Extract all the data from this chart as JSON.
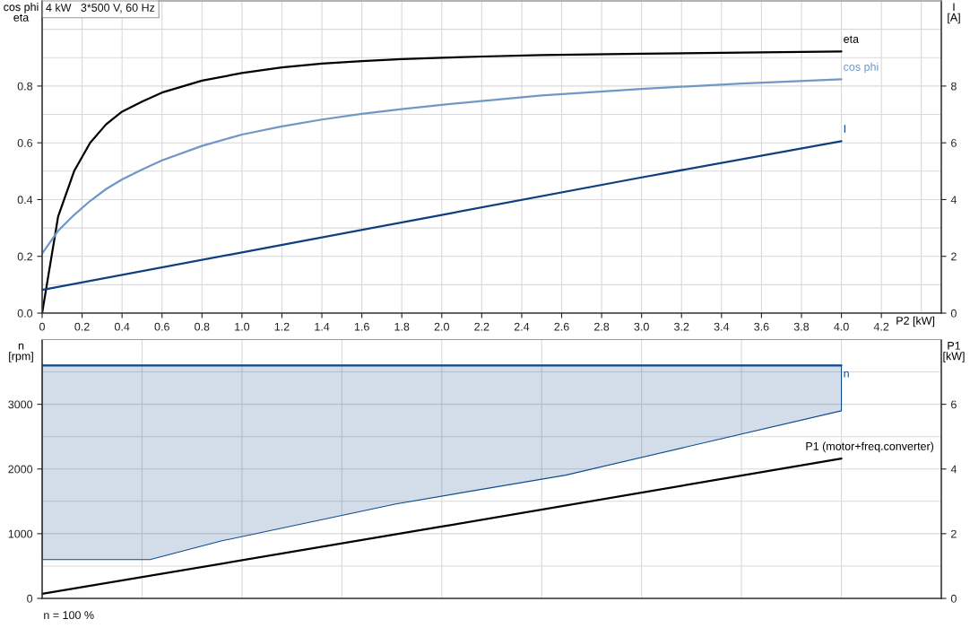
{
  "chart_data": [
    {
      "type": "line",
      "title": "4 kW   3*500 V, 60 Hz",
      "xlabel": "P2 [kW]",
      "ylabel": "cos phi\neta",
      "y2label": "I\n[A]",
      "x": [
        0,
        0.08,
        0.16,
        0.24,
        0.32,
        0.4,
        0.5,
        0.6,
        0.8,
        1.0,
        1.2,
        1.4,
        1.6,
        1.8,
        2.0,
        2.2,
        2.5,
        3.0,
        3.5,
        4.0
      ],
      "series": [
        {
          "name": "eta",
          "color": "#000000",
          "values": [
            0,
            0.34,
            0.5,
            0.6,
            0.665,
            0.71,
            0.745,
            0.777,
            0.819,
            0.846,
            0.866,
            0.879,
            0.888,
            0.895,
            0.9,
            0.904,
            0.909,
            0.914,
            0.918,
            0.922
          ]
        },
        {
          "name": "cos phi",
          "color": "#6f98c4",
          "values": [
            0.21,
            0.29,
            0.346,
            0.395,
            0.437,
            0.471,
            0.506,
            0.538,
            0.589,
            0.629,
            0.658,
            0.682,
            0.702,
            0.719,
            0.734,
            0.747,
            0.767,
            0.79,
            0.809,
            0.824
          ]
        },
        {
          "name": "I",
          "color": "#0f3f7d",
          "axis": "y2",
          "x": [
            0,
            1,
            2,
            3,
            4
          ],
          "values": [
            0.82,
            2.14,
            3.46,
            4.78,
            6.06
          ]
        }
      ],
      "xlim": [
        0,
        4.5
      ],
      "xticks": [
        {
          "value": 0,
          "label": "0"
        },
        0.2,
        0.4,
        0.6,
        0.8,
        {
          "value": 1,
          "label": "1.0"
        },
        1.2,
        1.4,
        1.6,
        1.8,
        {
          "value": 2,
          "label": "2.0"
        },
        2.2,
        2.4,
        2.6,
        2.8,
        {
          "value": 3,
          "label": "3.0"
        },
        3.2,
        3.4,
        3.6,
        3.8,
        {
          "value": 4,
          "label": "4.0"
        },
        4.2,
        {
          "value": 4.4,
          "label": null
        }
      ],
      "ylim": [
        0,
        1.1
      ],
      "yticks": [
        {
          "value": 0,
          "label": "0.0"
        },
        {
          "value": 0.1,
          "label": null
        },
        0.2,
        {
          "value": 0.3,
          "label": null
        },
        0.4,
        {
          "value": 0.5,
          "label": null
        },
        0.6,
        {
          "value": 0.7,
          "label": null
        },
        0.8,
        {
          "value": 0.9,
          "label": null
        },
        {
          "value": 1.0,
          "label": null
        }
      ],
      "y2lim": [
        0,
        11
      ],
      "y2ticks": [
        0,
        2,
        4,
        6,
        8
      ],
      "grid": true
    },
    {
      "type": "line",
      "ylabel": "n\n[rpm]",
      "y2label": "P1\n[kW]",
      "annotations": [
        "n = 100 %"
      ],
      "series": [
        {
          "name": "n",
          "color": "#0e4a8c",
          "x": [
            0,
            0.54,
            0.9,
            1.77,
            2.62,
            4.0
          ],
          "values": [
            3600,
            3600,
            3600,
            3600,
            3600,
            3600
          ],
          "lower": [
            600,
            600,
            890,
            1460,
            1905,
            2900
          ],
          "upper": [
            3600,
            3600,
            3600,
            3600,
            3600,
            3600
          ]
        },
        {
          "name": "P1 (motor+freq.converter)",
          "color": "#000000",
          "axis": "y2",
          "x": [
            0,
            2,
            4
          ],
          "values": [
            0.14,
            2.22,
            4.32
          ]
        }
      ],
      "xlim": [
        0,
        4.5
      ],
      "xticks": [
        0,
        0.5,
        1,
        1.5,
        2,
        2.5,
        3,
        3.5,
        4
      ],
      "tick_labels": "y",
      "ylim": [
        0,
        4000
      ],
      "yticks": [
        0,
        {
          "value": 500,
          "label": null
        },
        1000,
        {
          "value": 1500,
          "label": null
        },
        2000,
        {
          "value": 2500,
          "label": null
        },
        3000,
        {
          "value": 3500,
          "label": null
        }
      ],
      "y2lim": [
        0,
        8
      ],
      "y2ticks": [
        0,
        2,
        4,
        6
      ],
      "grid": true
    }
  ]
}
